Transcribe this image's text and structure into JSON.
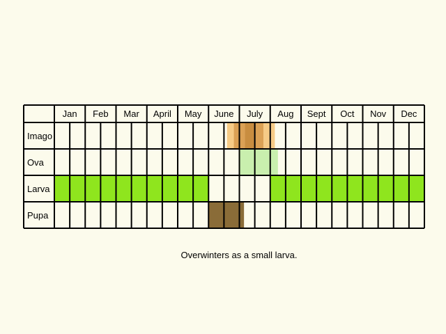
{
  "months": [
    "Jan",
    "Feb",
    "Mar",
    "Apr",
    "May",
    "June",
    "July",
    "Aug",
    "Sept",
    "Oct",
    "Nov",
    "Dec"
  ],
  "month_labels": [
    "Jan",
    "Feb",
    "Mar",
    "April",
    "May",
    "June",
    "July",
    "Aug",
    "Sept",
    "Oct",
    "Nov",
    "Dec"
  ],
  "stages": [
    {
      "label": "Imago",
      "fill": [
        {
          "start": 5.6,
          "end": 5.82,
          "color": "#f6cb86"
        },
        {
          "start": 5.82,
          "end": 6.18,
          "color": "#dba155"
        },
        {
          "start": 6.18,
          "end": 6.5,
          "color": "#c88d40"
        },
        {
          "start": 6.5,
          "end": 6.78,
          "color": "#dba155"
        },
        {
          "start": 6.78,
          "end": 7.15,
          "color": "#f6cb86"
        }
      ]
    },
    {
      "label": "Ova",
      "fill": [
        {
          "start": 6.0,
          "end": 7.25,
          "color": "#c9efae"
        }
      ]
    },
    {
      "label": "Larva",
      "fill": [
        {
          "start": 0.0,
          "end": 5.0,
          "color": "#8fe51e"
        },
        {
          "start": 7.0,
          "end": 12.0,
          "color": "#8fe51e"
        }
      ]
    },
    {
      "label": "Pupa",
      "fill": [
        {
          "start": 5.0,
          "end": 6.15,
          "color": "#8a6c38"
        }
      ]
    }
  ],
  "caption": "Overwinters as a small larva."
}
